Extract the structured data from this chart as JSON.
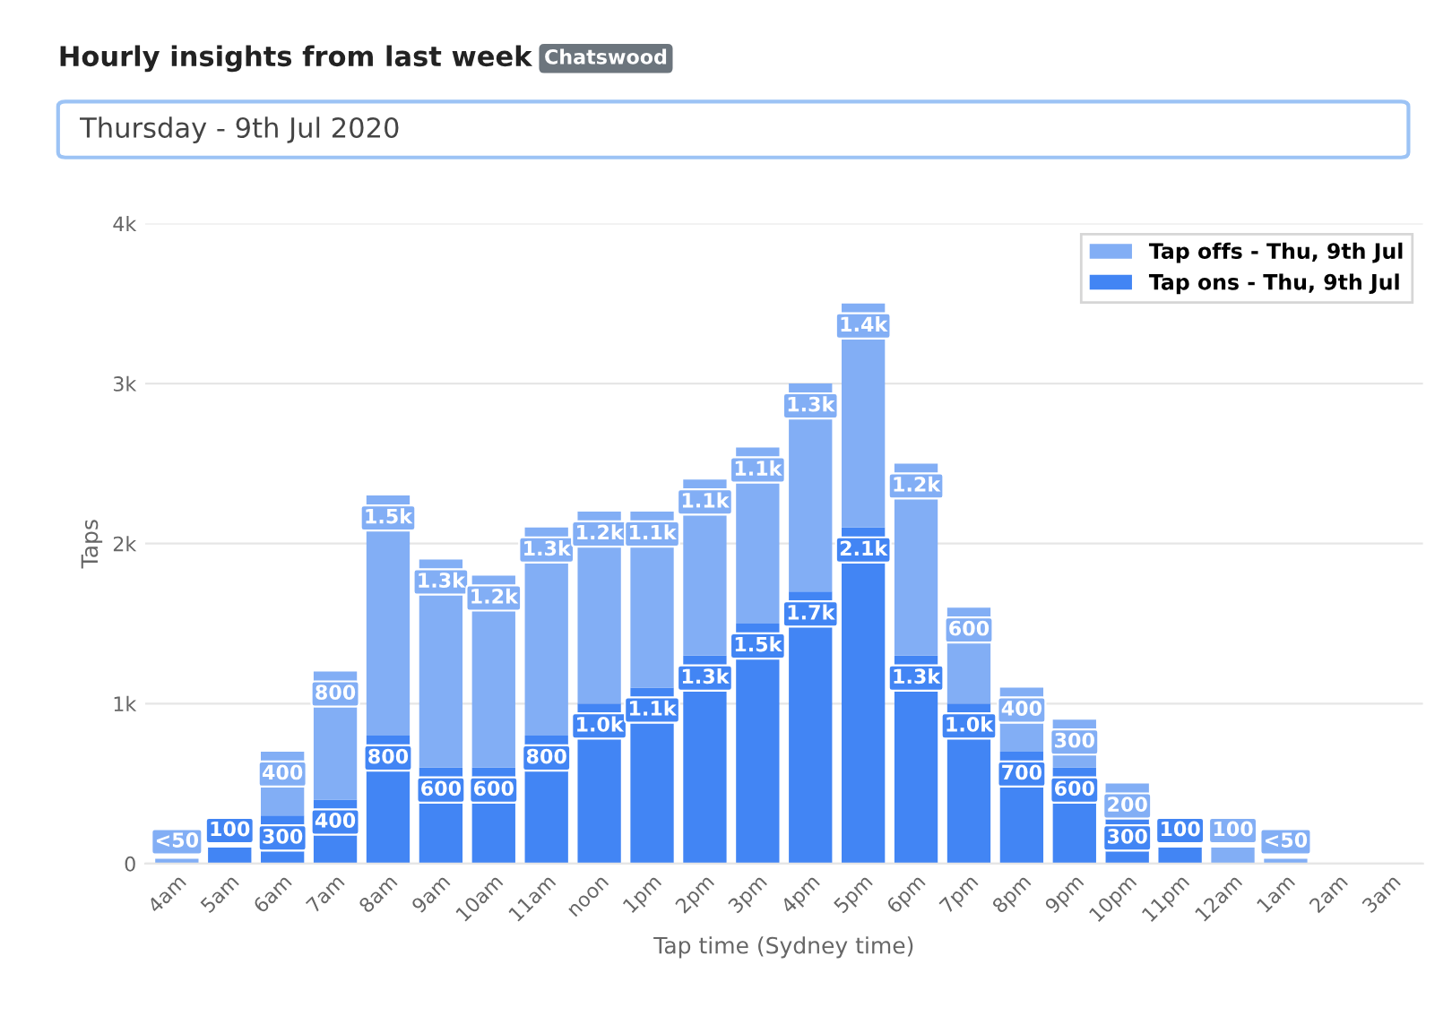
{
  "chart_data": {
    "type": "bar",
    "title": "Hourly insights from last week",
    "subtitle": "Thursday - 9th Jul 2020",
    "annotations": [
      "Chatswood"
    ],
    "xlabel": "Tap time (Sydney time)",
    "ylabel": "Taps",
    "categories": [
      "4am",
      "5am",
      "6am",
      "7am",
      "8am",
      "9am",
      "10am",
      "11am",
      "noon",
      "1pm",
      "2pm",
      "3pm",
      "4pm",
      "5pm",
      "6pm",
      "7pm",
      "8pm",
      "9pm",
      "10pm",
      "11pm",
      "12am",
      "1am",
      "2am",
      "3am"
    ],
    "stacked": true,
    "series": [
      {
        "name": "Tap ons - Thu, 9th Jul",
        "color": "#4285f4",
        "values": [
          0,
          100,
          300,
          400,
          800,
          600,
          600,
          800,
          1000,
          1100,
          1300,
          1500,
          1700,
          2100,
          1300,
          1000,
          700,
          600,
          300,
          100,
          0,
          0,
          0,
          0
        ],
        "value_labels": [
          null,
          "100",
          "300",
          "400",
          "800",
          "600",
          "600",
          "800",
          "1.0k",
          "1.1k",
          "1.3k",
          "1.5k",
          "1.7k",
          "2.1k",
          "1.3k",
          "1.0k",
          "700",
          "600",
          "300",
          "100",
          null,
          null,
          null,
          null
        ]
      },
      {
        "name": "Tap offs - Thu, 9th Jul",
        "color": "#82aef5",
        "values": [
          30,
          0,
          400,
          800,
          1500,
          1300,
          1200,
          1300,
          1200,
          1100,
          1100,
          1100,
          1300,
          1400,
          1200,
          600,
          400,
          300,
          200,
          0,
          100,
          30,
          0,
          0
        ],
        "value_labels": [
          "<50",
          null,
          "400",
          "800",
          "1.5k",
          "1.3k",
          "1.2k",
          "1.3k",
          "1.2k",
          "1.1k",
          "1.1k",
          "1.1k",
          "1.3k",
          "1.4k",
          "1.2k",
          "600",
          "400",
          "300",
          "200",
          null,
          "100",
          "<50",
          null,
          null
        ]
      }
    ],
    "ylim": [
      0,
      4000
    ],
    "yticks": [
      0,
      {
        "value": 1000,
        "label": "1k"
      },
      {
        "value": 2000,
        "label": "2k"
      },
      {
        "value": 3000,
        "label": "3k"
      },
      {
        "value": 4000,
        "label": "4k"
      }
    ],
    "grid": "y",
    "legend": "top right"
  }
}
